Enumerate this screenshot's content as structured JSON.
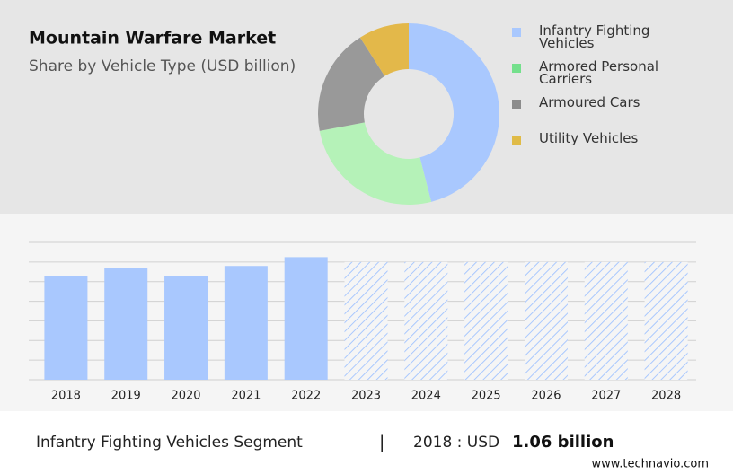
{
  "chart_data": [
    {
      "type": "pie",
      "title": "Mountain Warfare Market",
      "subtitle": "Share by Vehicle Type (USD billion)",
      "categories": [
        "Infantry Fighting Vehicles",
        "Armored Personal Carriers",
        "Armoured Cars",
        "Utility Vehicles"
      ],
      "values": [
        46,
        26,
        19,
        9
      ],
      "colors": [
        "#a9c8fe",
        "#b5f2b8",
        "#999999",
        "#e3b84a"
      ],
      "legend_colors": [
        "#a9c8fe",
        "#74e08c",
        "#8c8c8c",
        "#e0bb47"
      ]
    },
    {
      "type": "bar",
      "categories": [
        "2018",
        "2019",
        "2020",
        "2021",
        "2022",
        "2023",
        "2024",
        "2025",
        "2026",
        "2027",
        "2028"
      ],
      "series": [
        {
          "color": "#a9c8fe",
          "values": [
            1.06,
            1.14,
            1.06,
            1.16,
            1.25,
            null,
            null,
            null,
            null,
            null,
            null
          ]
        },
        {
          "color": "#a9c8fe",
          "pattern": "hatch",
          "values": [
            null,
            null,
            null,
            null,
            null,
            1.2,
            1.2,
            1.2,
            1.2,
            1.2,
            1.2
          ]
        }
      ],
      "ylim": [
        0,
        1.4
      ],
      "grid_values": [
        0,
        0.2,
        0.4,
        0.6,
        0.8,
        1.0,
        1.2,
        1.4
      ],
      "grid": true
    }
  ],
  "footer": {
    "segment": "Infantry Fighting Vehicles Segment",
    "separator": "|",
    "year_label": "2018 : USD",
    "value_label": "1.06 billion",
    "source": "www.technavio.com"
  }
}
